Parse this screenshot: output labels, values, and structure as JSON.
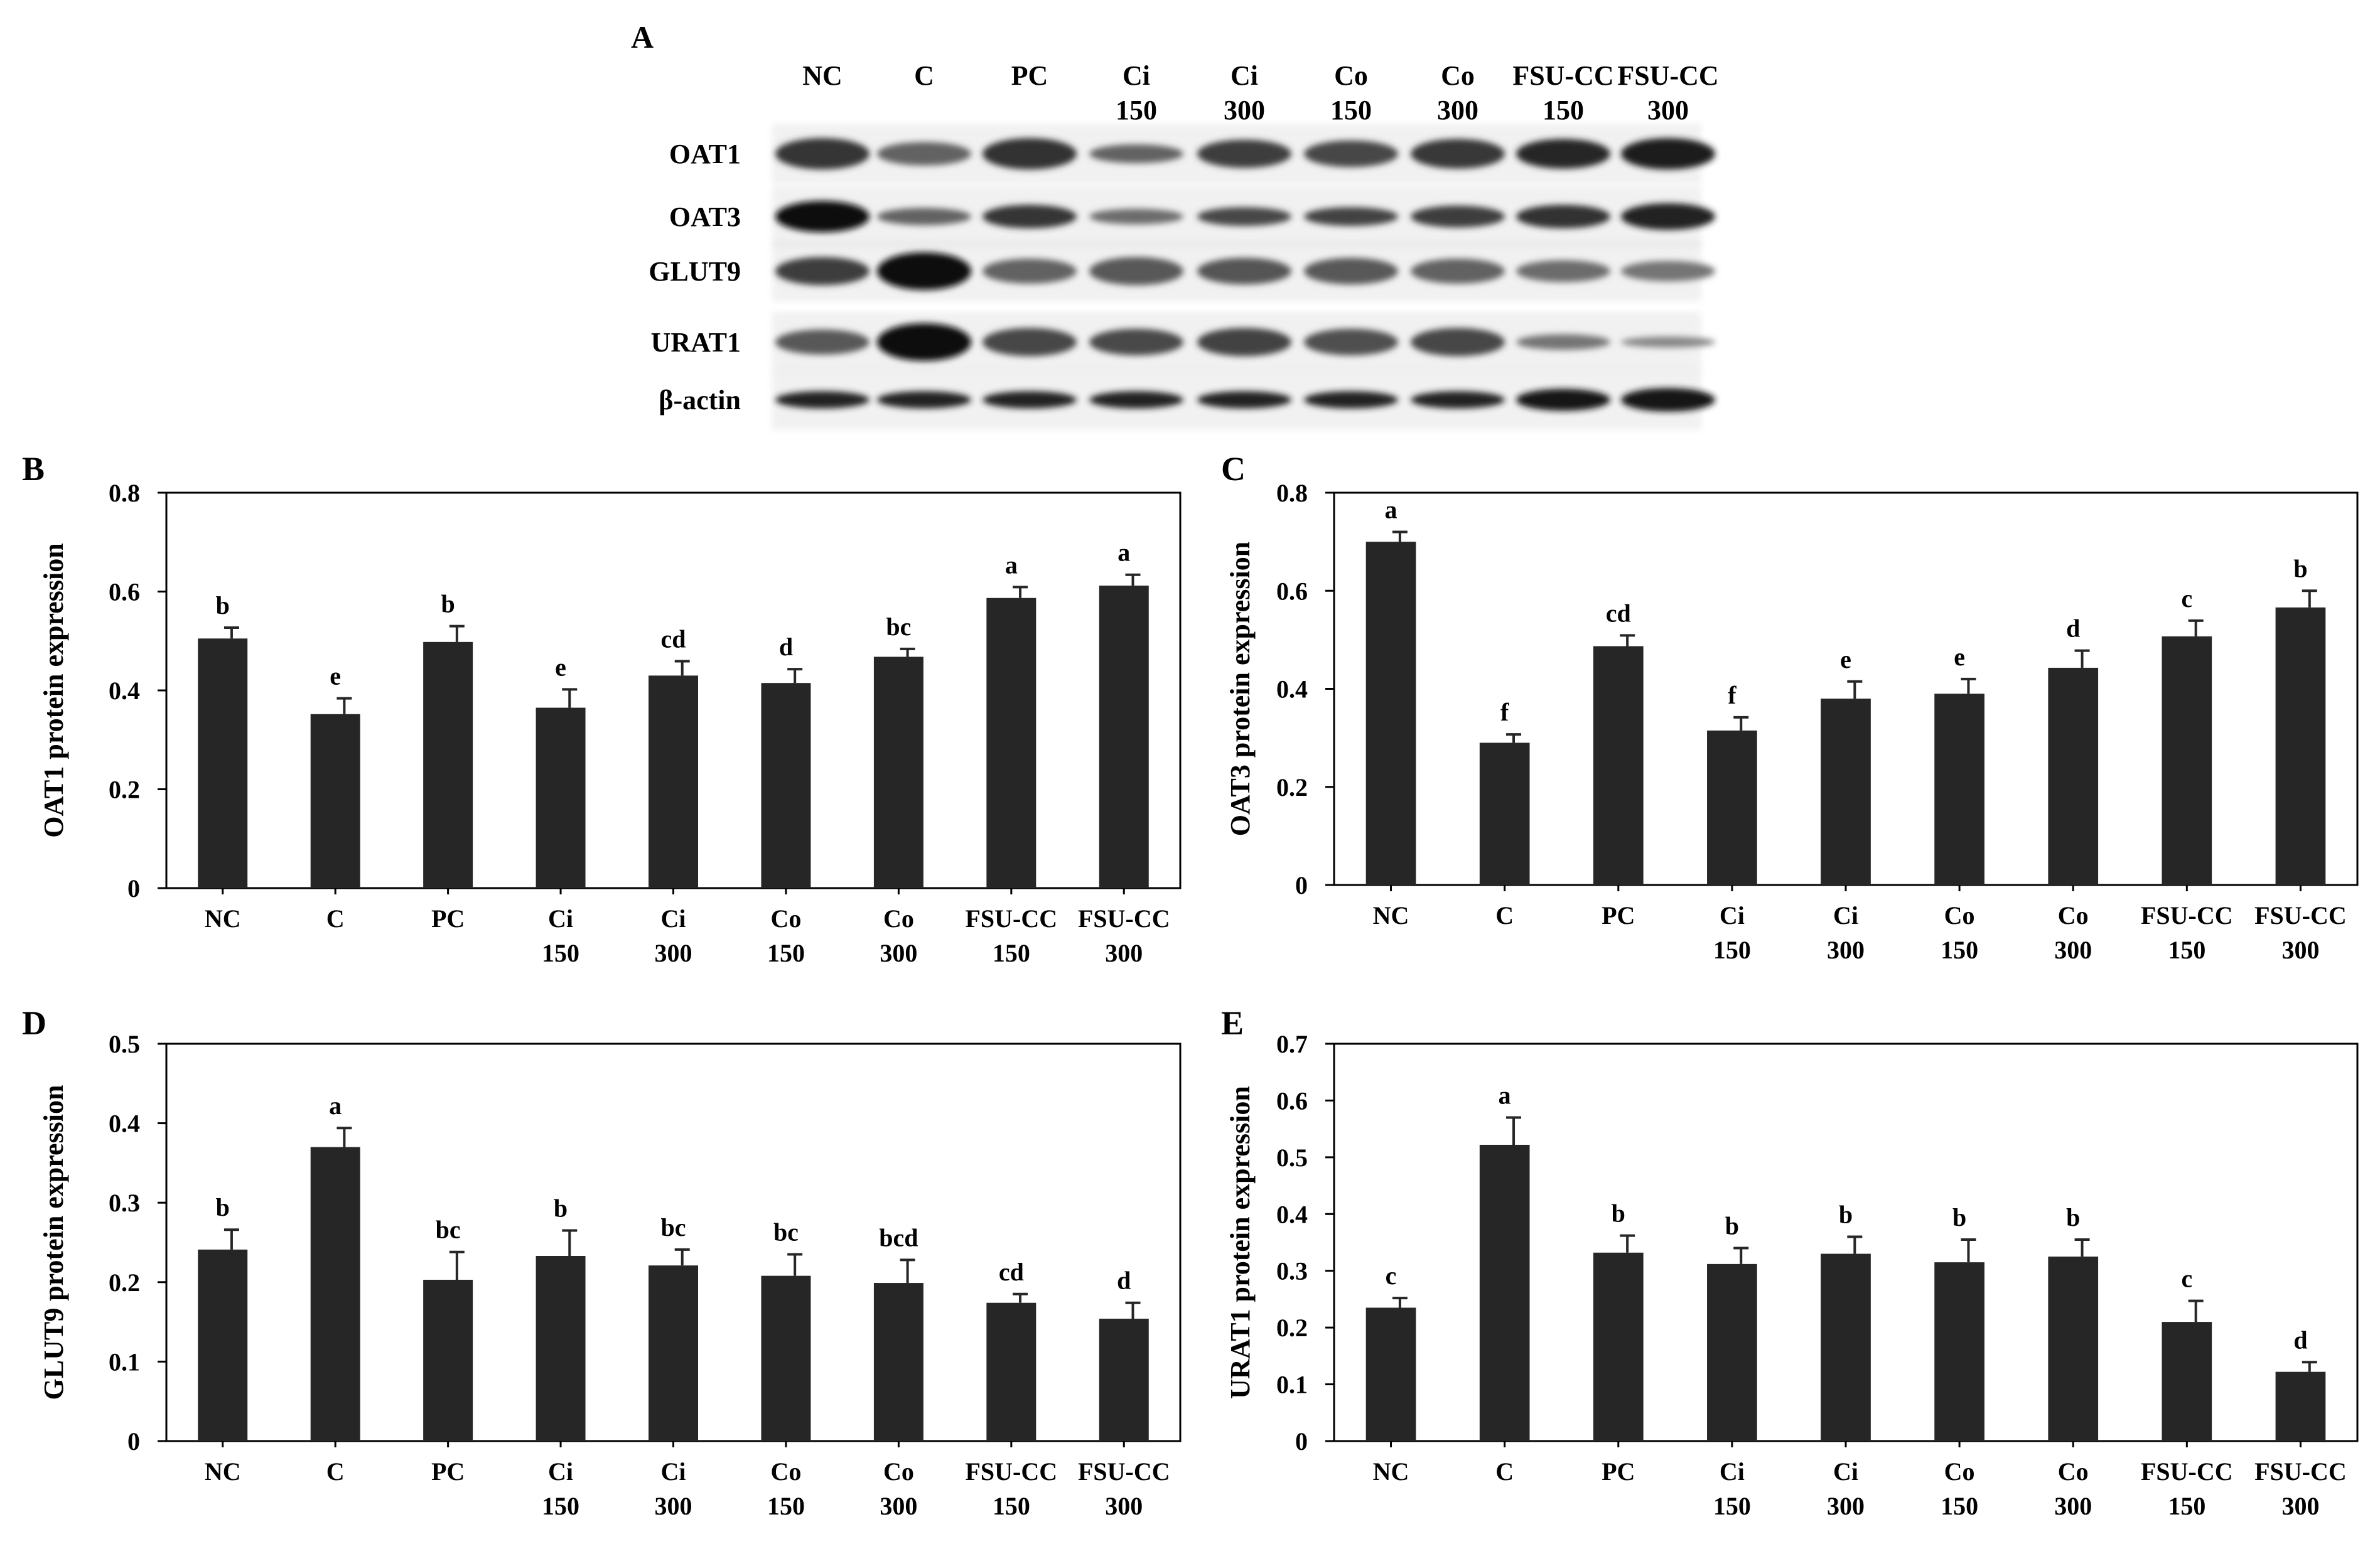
{
  "panel_a": {
    "panel_label": "A",
    "lanes": [
      [
        "NC"
      ],
      [
        "C"
      ],
      [
        "PC"
      ],
      [
        "Ci",
        "150"
      ],
      [
        "Ci",
        "300"
      ],
      [
        "Co",
        "150"
      ],
      [
        "Co",
        "300"
      ],
      [
        "FSU-CC",
        "150"
      ],
      [
        "FSU-CC",
        "300"
      ]
    ],
    "rows": [
      {
        "label": "OAT1",
        "intensity": [
          0.8,
          0.55,
          0.82,
          0.55,
          0.75,
          0.7,
          0.78,
          0.88,
          0.92
        ],
        "thickness": [
          1.0,
          0.75,
          1.0,
          0.6,
          0.9,
          0.85,
          0.95,
          0.95,
          1.0
        ]
      },
      {
        "label": "OAT3",
        "intensity": [
          1.0,
          0.55,
          0.8,
          0.5,
          0.7,
          0.72,
          0.75,
          0.82,
          0.9
        ],
        "thickness": [
          1.0,
          0.55,
          0.75,
          0.5,
          0.6,
          0.6,
          0.7,
          0.75,
          0.85
        ]
      },
      {
        "label": "GLUT9",
        "intensity": [
          0.75,
          1.0,
          0.55,
          0.6,
          0.62,
          0.6,
          0.55,
          0.5,
          0.45
        ],
        "thickness": [
          0.9,
          1.2,
          0.8,
          0.9,
          0.85,
          0.85,
          0.8,
          0.7,
          0.65
        ]
      },
      {
        "label": "URAT1",
        "intensity": [
          0.6,
          1.0,
          0.7,
          0.68,
          0.72,
          0.65,
          0.7,
          0.45,
          0.35
        ],
        "thickness": [
          0.8,
          1.2,
          0.9,
          0.85,
          0.9,
          0.85,
          0.9,
          0.5,
          0.35
        ]
      },
      {
        "label": "β-actin",
        "intensity": [
          0.9,
          0.9,
          0.9,
          0.9,
          0.9,
          0.9,
          0.9,
          0.95,
          0.95
        ],
        "thickness": [
          0.55,
          0.55,
          0.55,
          0.55,
          0.55,
          0.55,
          0.55,
          0.7,
          0.75
        ]
      }
    ]
  },
  "chart_data": [
    {
      "panel_label": "B",
      "type": "bar",
      "ylabel": "OAT1 protein expression",
      "xlabel": "",
      "ylim": [
        0,
        0.8
      ],
      "yticks": [
        "0",
        "0.2",
        "0.4",
        "0.6",
        "0.8"
      ],
      "categories": [
        [
          "NC"
        ],
        [
          "C"
        ],
        [
          "PC"
        ],
        [
          "Ci",
          "150"
        ],
        [
          "Ci",
          "300"
        ],
        [
          "Co",
          "150"
        ],
        [
          "Co",
          "300"
        ],
        [
          "FSU-CC",
          "150"
        ],
        [
          "FSU-CC",
          "300"
        ]
      ],
      "values": [
        0.505,
        0.352,
        0.498,
        0.365,
        0.43,
        0.415,
        0.468,
        0.587,
        0.612
      ],
      "errors": [
        0.022,
        0.032,
        0.032,
        0.037,
        0.029,
        0.028,
        0.016,
        0.022,
        0.022
      ],
      "letters": [
        "b",
        "e",
        "b",
        "e",
        "cd",
        "d",
        "bc",
        "a",
        "a"
      ]
    },
    {
      "panel_label": "C",
      "type": "bar",
      "ylabel": "OAT3 protein expression",
      "xlabel": "",
      "ylim": [
        0,
        0.8
      ],
      "yticks": [
        "0",
        "0.2",
        "0.4",
        "0.6",
        "0.8"
      ],
      "categories": [
        [
          "NC"
        ],
        [
          "C"
        ],
        [
          "PC"
        ],
        [
          "Ci",
          "150"
        ],
        [
          "Ci",
          "300"
        ],
        [
          "Co",
          "150"
        ],
        [
          "Co",
          "300"
        ],
        [
          "FSU-CC",
          "150"
        ],
        [
          "FSU-CC",
          "300"
        ]
      ],
      "values": [
        0.7,
        0.29,
        0.487,
        0.315,
        0.38,
        0.39,
        0.443,
        0.507,
        0.566
      ],
      "errors": [
        0.02,
        0.017,
        0.022,
        0.027,
        0.035,
        0.03,
        0.035,
        0.032,
        0.034
      ],
      "letters": [
        "a",
        "f",
        "cd",
        "f",
        "e",
        "e",
        "d",
        "c",
        "b"
      ]
    },
    {
      "panel_label": "D",
      "type": "bar",
      "ylabel": "GLUT9 protein expression",
      "xlabel": "",
      "ylim": [
        0,
        0.5
      ],
      "yticks": [
        "0",
        "0.1",
        "0.2",
        "0.3",
        "0.4",
        "0.5"
      ],
      "categories": [
        [
          "NC"
        ],
        [
          "C"
        ],
        [
          "PC"
        ],
        [
          "Ci",
          "150"
        ],
        [
          "Ci",
          "300"
        ],
        [
          "Co",
          "150"
        ],
        [
          "Co",
          "300"
        ],
        [
          "FSU-CC",
          "150"
        ],
        [
          "FSU-CC",
          "300"
        ]
      ],
      "values": [
        0.241,
        0.37,
        0.203,
        0.233,
        0.221,
        0.208,
        0.199,
        0.174,
        0.154
      ],
      "errors": [
        0.025,
        0.024,
        0.035,
        0.032,
        0.02,
        0.027,
        0.029,
        0.011,
        0.02
      ],
      "letters": [
        "b",
        "a",
        "bc",
        "b",
        "bc",
        "bc",
        "bcd",
        "cd",
        "d"
      ]
    },
    {
      "panel_label": "E",
      "type": "bar",
      "ylabel": "URAT1 protein expression",
      "xlabel": "",
      "ylim": [
        0,
        0.7
      ],
      "yticks": [
        "0",
        "0.1",
        "0.2",
        "0.3",
        "0.4",
        "0.5",
        "0.6",
        "0.7"
      ],
      "categories": [
        [
          "NC"
        ],
        [
          "C"
        ],
        [
          "PC"
        ],
        [
          "Ci",
          "150"
        ],
        [
          "Ci",
          "300"
        ],
        [
          "Co",
          "150"
        ],
        [
          "Co",
          "300"
        ],
        [
          "FSU-CC",
          "150"
        ],
        [
          "FSU-CC",
          "300"
        ]
      ],
      "values": [
        0.235,
        0.522,
        0.332,
        0.312,
        0.33,
        0.315,
        0.325,
        0.21,
        0.122
      ],
      "errors": [
        0.017,
        0.048,
        0.03,
        0.028,
        0.03,
        0.04,
        0.03,
        0.037,
        0.017
      ],
      "letters": [
        "c",
        "a",
        "b",
        "b",
        "b",
        "b",
        "b",
        "c",
        "d"
      ]
    }
  ]
}
